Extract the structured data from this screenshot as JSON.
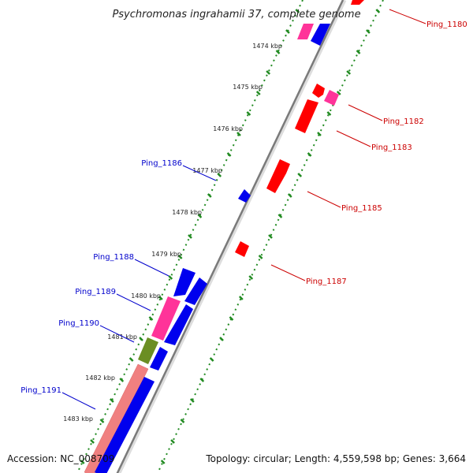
{
  "title": "Psychromonas ingrahamii 37, complete genome",
  "footer": {
    "accession": "Accession: NC_008709",
    "summary": "Topology: circular; Length: 4,559,598 bp; Genes: 3,664"
  },
  "colors": {
    "forward_gene": "#ff0000",
    "reverse_gene": "#0000ff",
    "rna_gene": "#ff3399",
    "other_gene": "#6b8e23",
    "region": "#f08080",
    "tick": "#228b22",
    "backbone": "#888888",
    "forward_label": "#cc0000",
    "reverse_label": "#0000cc"
  },
  "ruler": [
    {
      "label": "1474 kbp"
    },
    {
      "label": "1475 kbp"
    },
    {
      "label": "1476 kbp"
    },
    {
      "label": "1477 kbp"
    },
    {
      "label": "1478 kbp"
    },
    {
      "label": "1479 kbp"
    },
    {
      "label": "1480 kbp"
    },
    {
      "label": "1481 kbp"
    },
    {
      "label": "1482 kbp"
    },
    {
      "label": "1483 kbp"
    }
  ],
  "gene_labels": [
    {
      "text": "Ping_1180",
      "strand": "forward"
    },
    {
      "text": "Ping_1182",
      "strand": "forward"
    },
    {
      "text": "Ping_1183",
      "strand": "forward"
    },
    {
      "text": "Ping_1185",
      "strand": "forward"
    },
    {
      "text": "Ping_1187",
      "strand": "forward"
    },
    {
      "text": "Ping_1186",
      "strand": "reverse"
    },
    {
      "text": "Ping_1188",
      "strand": "reverse"
    },
    {
      "text": "Ping_1189",
      "strand": "reverse"
    },
    {
      "text": "Ping_1190",
      "strand": "reverse"
    },
    {
      "text": "Ping_1191",
      "strand": "reverse"
    }
  ]
}
